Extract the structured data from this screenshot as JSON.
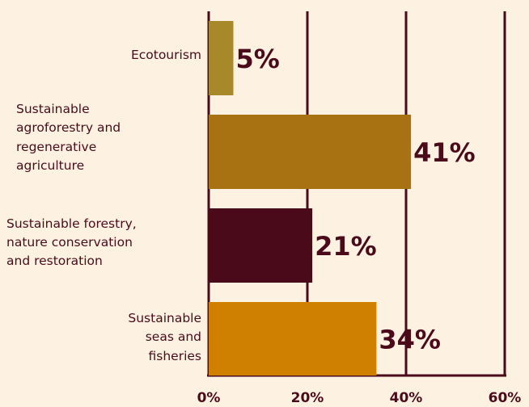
{
  "chart_data": {
    "type": "bar",
    "orientation": "horizontal",
    "categories": [
      "Ecotourism",
      "Sustainable agroforestry and regenerative agriculture",
      "Sustainable forestry, nature conservation and restoration",
      "Sustainable seas and fisheries"
    ],
    "category_lines": [
      [
        "Ecotourism"
      ],
      [
        "Sustainable",
        "agroforestry and",
        "regenerative",
        "agriculture"
      ],
      [
        "Sustainable forestry,",
        "nature conservation",
        "and restoration"
      ],
      [
        "Sustainable",
        "seas and",
        "fisheries"
      ]
    ],
    "label_align": [
      "end",
      "start",
      "start",
      "end"
    ],
    "values": [
      5,
      41,
      21,
      34
    ],
    "value_labels": [
      "5%",
      "41%",
      "21%",
      "34%"
    ],
    "colors": [
      "#a7892a",
      "#a87112",
      "#4a0a1a",
      "#cf8000"
    ],
    "xlim": [
      0,
      60
    ],
    "xticks": [
      0,
      20,
      40,
      60
    ],
    "xtick_labels": [
      "0%",
      "20%",
      "40%",
      "60%"
    ],
    "grid": true,
    "legend": "none",
    "axis_color": "#4a0a1a",
    "background": "#fdf2e1"
  }
}
